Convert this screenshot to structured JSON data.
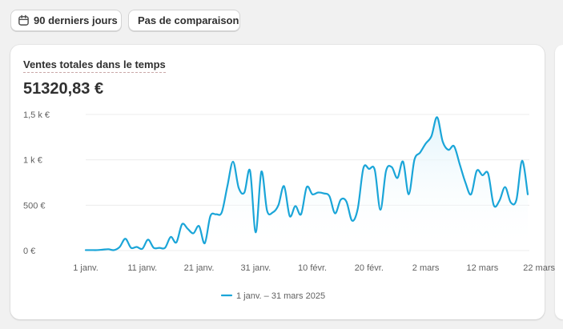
{
  "filters": {
    "date_range_label": "90 derniers jours",
    "comparison_label": "Pas de comparaison"
  },
  "card": {
    "title": "Ventes totales dans le temps",
    "total": "51320,83 €"
  },
  "colors": {
    "line": "#1aa5d8",
    "area_top": "#dff3fb",
    "grid": "#ececec",
    "axis_text": "#616161"
  },
  "chart_data": {
    "type": "area",
    "title": "Ventes totales dans le temps",
    "xlabel": "",
    "ylabel": "",
    "ylim": [
      0,
      1500
    ],
    "y_ticks": [
      {
        "value": 0,
        "label": "0 €"
      },
      {
        "value": 500,
        "label": "500 €"
      },
      {
        "value": 1000,
        "label": "1 k €"
      },
      {
        "value": 1500,
        "label": "1,5 k €"
      }
    ],
    "x_ticks": [
      {
        "day": 0,
        "label": "1 janv."
      },
      {
        "day": 10,
        "label": "11 janv."
      },
      {
        "day": 20,
        "label": "21 janv."
      },
      {
        "day": 30,
        "label": "31 janv."
      },
      {
        "day": 40,
        "label": "10 févr."
      },
      {
        "day": 50,
        "label": "20 févr."
      },
      {
        "day": 60,
        "label": "2 mars"
      },
      {
        "day": 70,
        "label": "12 mars"
      },
      {
        "day": 80,
        "label": "22 mars"
      }
    ],
    "legend": {
      "label": "1 janv. – 31 mars 2025",
      "position": "bottom-center"
    },
    "series": [
      {
        "name": "1 janv. – 31 mars 2025",
        "x_start_day": 0,
        "values": [
          5,
          5,
          5,
          10,
          15,
          5,
          40,
          130,
          30,
          40,
          20,
          120,
          30,
          30,
          30,
          150,
          90,
          290,
          240,
          190,
          270,
          80,
          380,
          400,
          420,
          710,
          980,
          690,
          640,
          880,
          200,
          870,
          440,
          420,
          500,
          710,
          380,
          490,
          400,
          700,
          620,
          640,
          630,
          600,
          410,
          560,
          540,
          330,
          460,
          910,
          900,
          890,
          450,
          880,
          920,
          800,
          980,
          620,
          1000,
          1080,
          1180,
          1260,
          1470,
          1200,
          1110,
          1150,
          950,
          750,
          620,
          880,
          830,
          850,
          500,
          550,
          700,
          530,
          560,
          990,
          620
        ]
      }
    ]
  }
}
